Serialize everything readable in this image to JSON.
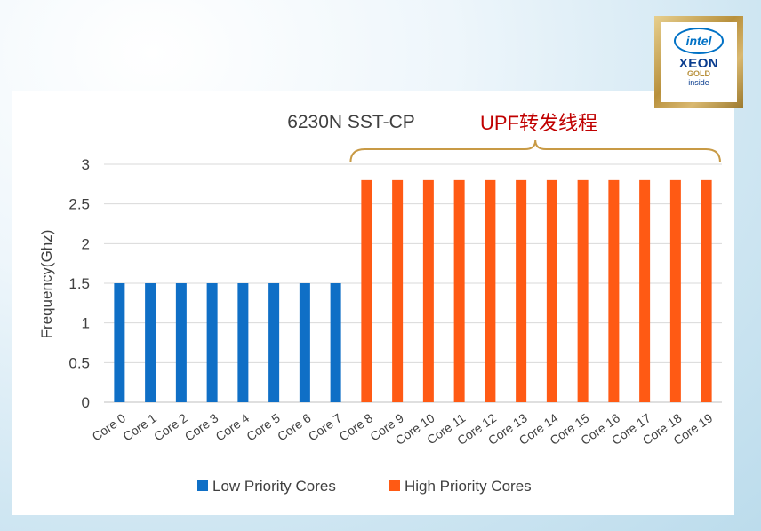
{
  "badge": {
    "brand": "intel",
    "product": "XEON",
    "tier": "GOLD",
    "tagline": "inside"
  },
  "chart_data": {
    "type": "bar",
    "title": "6230N SST-CP",
    "annotation": "UPF转发线程",
    "ylabel": "Frequency(Ghz)",
    "xlabel": "",
    "ylim": [
      0,
      3
    ],
    "yticks": [
      "0",
      "0.5",
      "1",
      "1.5",
      "2",
      "2.5",
      "3"
    ],
    "categories": [
      "Core 0",
      "Core 1",
      "Core 2",
      "Core 3",
      "Core 4",
      "Core 5",
      "Core 6",
      "Core 7",
      "Core 8",
      "Core 9",
      "Core 10",
      "Core 11",
      "Core 12",
      "Core 13",
      "Core 14",
      "Core 15",
      "Core 16",
      "Core 17",
      "Core 18",
      "Core 19"
    ],
    "values": [
      1.5,
      1.5,
      1.5,
      1.5,
      1.5,
      1.5,
      1.5,
      1.5,
      2.8,
      2.8,
      2.8,
      2.8,
      2.8,
      2.8,
      2.8,
      2.8,
      2.8,
      2.8,
      2.8,
      2.8
    ],
    "groups": [
      0,
      0,
      0,
      0,
      0,
      0,
      0,
      0,
      1,
      1,
      1,
      1,
      1,
      1,
      1,
      1,
      1,
      1,
      1,
      1
    ],
    "series": [
      {
        "name": "Low Priority Cores",
        "color": "#0f6fc6"
      },
      {
        "name": "High Priority Cores",
        "color": "#ff5a14"
      }
    ],
    "annotation_color": "#c00000",
    "brace_color": "#c89a45",
    "legend_position": "bottom-center"
  }
}
